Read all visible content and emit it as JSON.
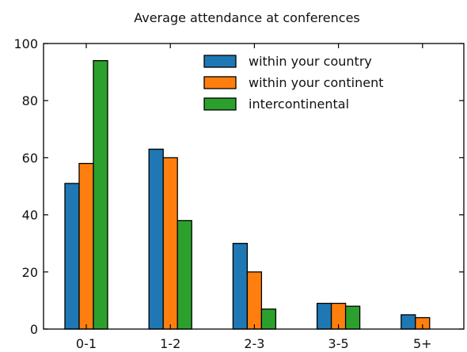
{
  "chart_data": {
    "type": "bar",
    "title": "Average attendance at conferences",
    "xlabel": "",
    "ylabel": "",
    "categories": [
      "0-1",
      "1-2",
      "2-3",
      "3-5",
      "5+"
    ],
    "series": [
      {
        "name": "within your country",
        "color": "#1f77b4",
        "values": [
          51,
          63,
          30,
          9,
          5
        ]
      },
      {
        "name": "within your continent",
        "color": "#ff7f0e",
        "values": [
          58,
          60,
          20,
          9,
          4
        ]
      },
      {
        "name": "intercontinental",
        "color": "#2ca02c",
        "values": [
          94,
          38,
          7,
          8,
          0
        ]
      }
    ],
    "ylim": [
      0,
      100
    ],
    "yticks": [
      0,
      20,
      40,
      60,
      80,
      100
    ],
    "grid": false,
    "legend_position": "top-right"
  }
}
